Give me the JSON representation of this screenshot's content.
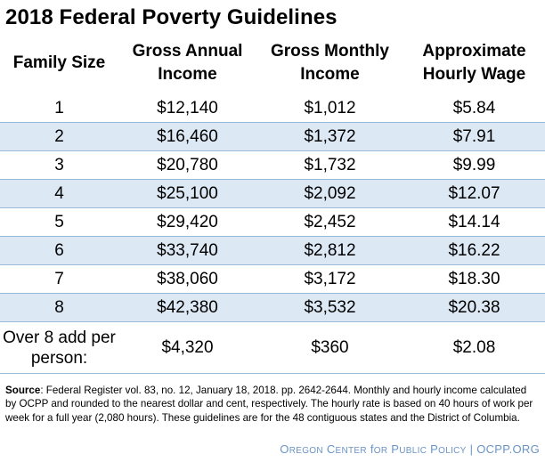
{
  "title": "2018 Federal Poverty Guidelines",
  "table": {
    "headers": [
      "Family Size",
      "Gross Annual Income",
      "Gross Monthly Income",
      "Approximate Hourly Wage"
    ],
    "rows": [
      [
        "1",
        "$12,140",
        "$1,012",
        "$5.84"
      ],
      [
        "2",
        "$16,460",
        "$1,372",
        "$7.91"
      ],
      [
        "3",
        "$20,780",
        "$1,732",
        "$9.99"
      ],
      [
        "4",
        "$25,100",
        "$2,092",
        "$12.07"
      ],
      [
        "5",
        "$29,420",
        "$2,452",
        "$14.14"
      ],
      [
        "6",
        "$33,740",
        "$2,812",
        "$16.22"
      ],
      [
        "7",
        "$38,060",
        "$3,172",
        "$18.30"
      ],
      [
        "8",
        "$42,380",
        "$3,532",
        "$20.38"
      ]
    ],
    "extra_row": [
      "Over 8 add per person:",
      "$4,320",
      "$360",
      "$2.08"
    ]
  },
  "source": {
    "label": "Source",
    "text": ": Federal Register vol. 83, no. 12, January 18, 2018. pp. 2642-2644. Monthly and hourly income calculated by OCPP and rounded to the nearest dollar and cent, respectively. The hourly rate is based on 40 hours of work per week for a full year (2,080 hours). These guidelines are for the 48 contiguous states and the District of Columbia."
  },
  "footer": "Oregon Center for Public Policy | OCPP.ORG",
  "colors": {
    "band": "#dce8f4",
    "rule": "#9bbad8",
    "footer": "#6a94c6"
  }
}
